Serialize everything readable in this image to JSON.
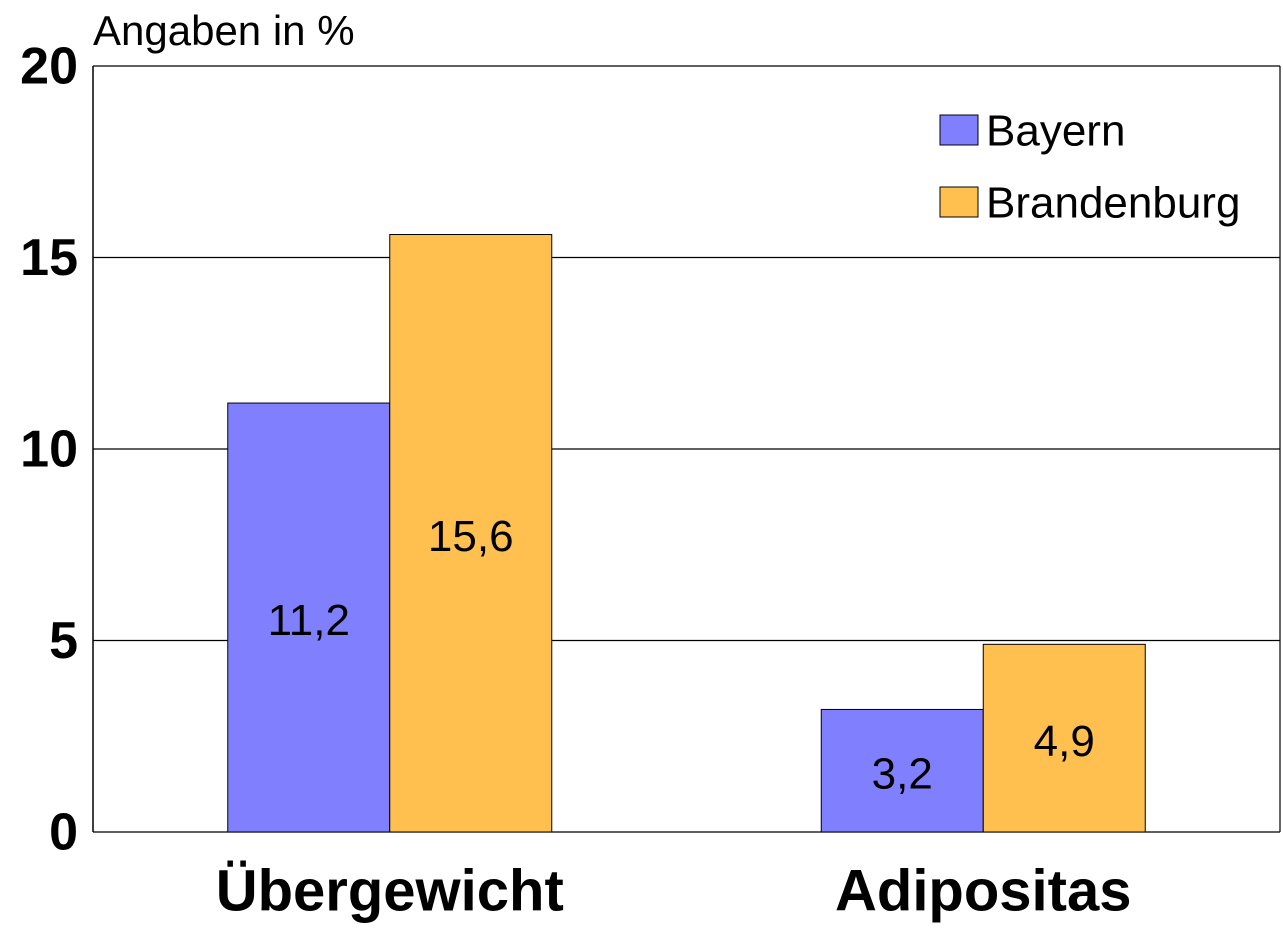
{
  "chart_data": {
    "type": "bar",
    "ylabel": "Angaben in %",
    "categories": [
      "Übergewicht",
      "Adipositas"
    ],
    "series": [
      {
        "name": "Bayern",
        "color": "#8080ff",
        "values": [
          11.2,
          3.2
        ],
        "value_labels": [
          "11,2",
          "3,2"
        ]
      },
      {
        "name": "Brandenburg",
        "color": "#ffc050",
        "values": [
          15.6,
          4.9
        ],
        "value_labels": [
          "15,6",
          "4,9"
        ]
      }
    ],
    "ylim": [
      0,
      20
    ],
    "yticks": [
      0,
      5,
      10,
      15,
      20
    ],
    "grid": true,
    "legend": "upper right"
  }
}
